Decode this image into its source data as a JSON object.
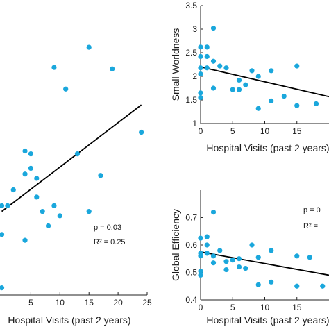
{
  "chart_data": [
    {
      "type": "scatter",
      "title": "",
      "xlabel": "Hospital Visits (past 2 years)",
      "ylabel": "",
      "xlim": [
        -0.3,
        25
      ],
      "ylim": [
        1.3,
        3.3
      ],
      "xticks": [
        5,
        10,
        15,
        20,
        25
      ],
      "xtick_labels": [
        "5",
        "10",
        "15",
        "20",
        "25"
      ],
      "yticks": [],
      "grid": false,
      "points": [
        {
          "x": 0,
          "y": 1.35
        },
        {
          "x": 0,
          "y": 1.72
        },
        {
          "x": 0,
          "y": 1.92
        },
        {
          "x": 1,
          "y": 1.92
        },
        {
          "x": 2,
          "y": 2.03
        },
        {
          "x": 4,
          "y": 1.68
        },
        {
          "x": 4,
          "y": 2.14
        },
        {
          "x": 4,
          "y": 2.3
        },
        {
          "x": 5,
          "y": 2.28
        },
        {
          "x": 5,
          "y": 2.18
        },
        {
          "x": 6,
          "y": 2.11
        },
        {
          "x": 6,
          "y": 1.98
        },
        {
          "x": 7,
          "y": 1.88
        },
        {
          "x": 8,
          "y": 1.78
        },
        {
          "x": 9,
          "y": 2.88
        },
        {
          "x": 9,
          "y": 1.92
        },
        {
          "x": 10,
          "y": 1.85
        },
        {
          "x": 11,
          "y": 2.73
        },
        {
          "x": 13,
          "y": 2.28
        },
        {
          "x": 15,
          "y": 3.02
        },
        {
          "x": 15,
          "y": 1.88
        },
        {
          "x": 17,
          "y": 2.13
        },
        {
          "x": 19,
          "y": 2.87
        },
        {
          "x": 24,
          "y": 2.43
        }
      ],
      "fit_line": {
        "x": [
          0,
          24
        ],
        "y": [
          1.88,
          2.62
        ]
      },
      "annotations": [
        "p = 0.03",
        "R² = 0.25"
      ]
    },
    {
      "type": "scatter",
      "title": "",
      "xlabel": "Hospital Visits (past 2 years)",
      "ylabel": "Small Worldness",
      "xlim": [
        0,
        20
      ],
      "ylim": [
        1,
        3.5
      ],
      "xticks": [
        0,
        5,
        10,
        15
      ],
      "xtick_labels": [
        "0",
        "5",
        "10",
        "15"
      ],
      "yticks": [
        1,
        1.5,
        2,
        2.5,
        3,
        3.5
      ],
      "ytick_labels": [
        "1",
        "1.5",
        "2",
        "2.5",
        "3",
        "3.5"
      ],
      "grid": false,
      "points": [
        {
          "x": 0,
          "y": 1.55
        },
        {
          "x": 0,
          "y": 1.65
        },
        {
          "x": 0,
          "y": 2.05
        },
        {
          "x": 0,
          "y": 2.18
        },
        {
          "x": 0,
          "y": 2.42
        },
        {
          "x": 0,
          "y": 2.62
        },
        {
          "x": 1,
          "y": 2.62
        },
        {
          "x": 1,
          "y": 2.42
        },
        {
          "x": 1,
          "y": 2.18
        },
        {
          "x": 2,
          "y": 3.02
        },
        {
          "x": 2,
          "y": 2.32
        },
        {
          "x": 2,
          "y": 1.75
        },
        {
          "x": 3,
          "y": 2.22
        },
        {
          "x": 4,
          "y": 2.18
        },
        {
          "x": 5,
          "y": 1.72
        },
        {
          "x": 6,
          "y": 1.92
        },
        {
          "x": 6,
          "y": 1.72
        },
        {
          "x": 7,
          "y": 1.82
        },
        {
          "x": 8,
          "y": 2.12
        },
        {
          "x": 9,
          "y": 1.32
        },
        {
          "x": 9,
          "y": 2.0
        },
        {
          "x": 11,
          "y": 2.12
        },
        {
          "x": 11,
          "y": 1.48
        },
        {
          "x": 13,
          "y": 1.58
        },
        {
          "x": 15,
          "y": 2.22
        },
        {
          "x": 15,
          "y": 1.38
        },
        {
          "x": 18,
          "y": 1.42
        }
      ],
      "fit_line": {
        "x": [
          0,
          20
        ],
        "y": [
          2.2,
          1.57
        ]
      }
    },
    {
      "type": "scatter",
      "title": "",
      "xlabel": "Hospital Visits (past 2 years)",
      "ylabel": "Global Efficiency",
      "xlim": [
        0,
        20
      ],
      "ylim": [
        0.4,
        0.8
      ],
      "xticks": [
        0,
        5,
        10,
        15
      ],
      "xtick_labels": [
        "0",
        "5",
        "10",
        "15"
      ],
      "yticks": [
        0.4,
        0.5,
        0.6,
        0.7
      ],
      "ytick_labels": [
        "0.4",
        "0.5",
        "0.6",
        "0.7"
      ],
      "grid": false,
      "points": [
        {
          "x": 0,
          "y": 0.49
        },
        {
          "x": 0,
          "y": 0.505
        },
        {
          "x": 0,
          "y": 0.56
        },
        {
          "x": 0,
          "y": 0.57
        },
        {
          "x": 0,
          "y": 0.625
        },
        {
          "x": 1,
          "y": 0.63
        },
        {
          "x": 1,
          "y": 0.6
        },
        {
          "x": 1,
          "y": 0.57
        },
        {
          "x": 2,
          "y": 0.72
        },
        {
          "x": 2,
          "y": 0.56
        },
        {
          "x": 2,
          "y": 0.535
        },
        {
          "x": 3,
          "y": 0.58
        },
        {
          "x": 4,
          "y": 0.54
        },
        {
          "x": 4,
          "y": 0.51
        },
        {
          "x": 5,
          "y": 0.545
        },
        {
          "x": 6,
          "y": 0.52
        },
        {
          "x": 6,
          "y": 0.55
        },
        {
          "x": 7,
          "y": 0.515
        },
        {
          "x": 8,
          "y": 0.6
        },
        {
          "x": 9,
          "y": 0.455
        },
        {
          "x": 9,
          "y": 0.555
        },
        {
          "x": 11,
          "y": 0.58
        },
        {
          "x": 11,
          "y": 0.465
        },
        {
          "x": 15,
          "y": 0.56
        },
        {
          "x": 15,
          "y": 0.45
        },
        {
          "x": 17,
          "y": 0.555
        },
        {
          "x": 19,
          "y": 0.45
        }
      ],
      "fit_line": {
        "x": [
          0,
          20
        ],
        "y": [
          0.575,
          0.49
        ]
      },
      "annotations": [
        "p = 0",
        "R² ="
      ]
    }
  ]
}
